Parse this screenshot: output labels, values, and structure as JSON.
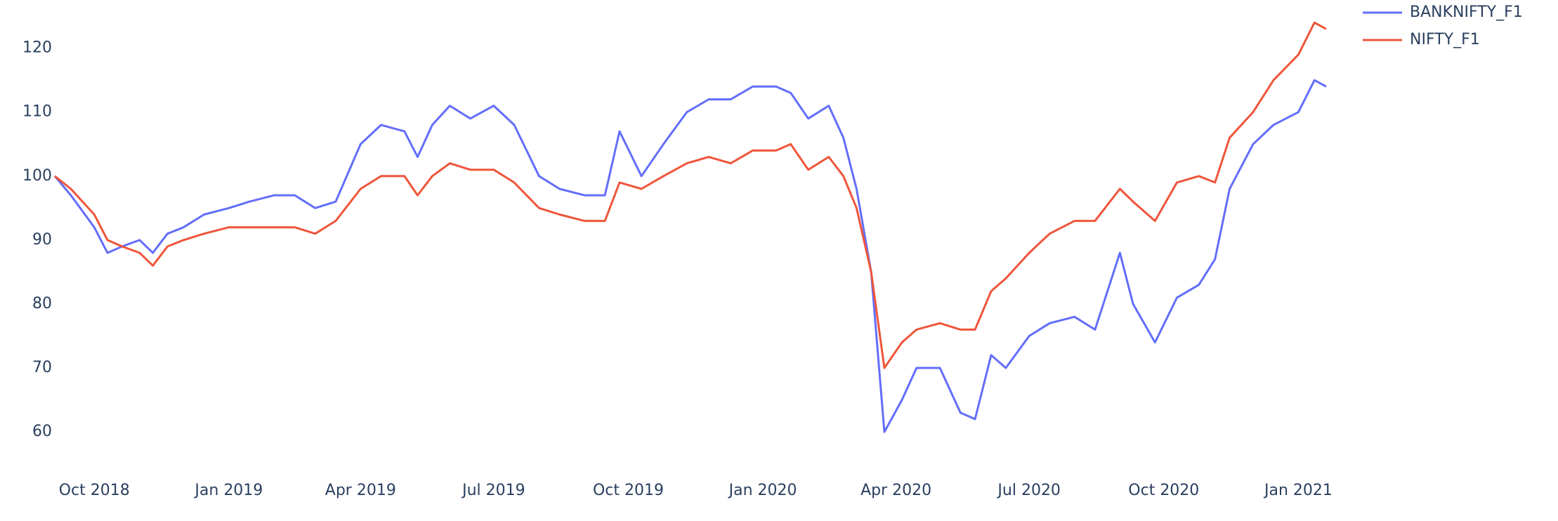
{
  "chart_data": {
    "type": "line",
    "x": [
      "2018-09-04",
      "2018-09-15",
      "2018-10-01",
      "2018-10-10",
      "2018-10-20",
      "2018-11-01",
      "2018-11-10",
      "2018-11-20",
      "2018-12-01",
      "2018-12-15",
      "2019-01-01",
      "2019-01-15",
      "2019-02-01",
      "2019-02-15",
      "2019-03-01",
      "2019-03-15",
      "2019-04-01",
      "2019-04-15",
      "2019-05-01",
      "2019-05-10",
      "2019-05-20",
      "2019-06-01",
      "2019-06-15",
      "2019-07-01",
      "2019-07-15",
      "2019-08-01",
      "2019-08-15",
      "2019-09-01",
      "2019-09-15",
      "2019-09-25",
      "2019-10-10",
      "2019-10-25",
      "2019-11-10",
      "2019-11-25",
      "2019-12-10",
      "2019-12-25",
      "2020-01-10",
      "2020-01-20",
      "2020-02-01",
      "2020-02-15",
      "2020-02-25",
      "2020-03-05",
      "2020-03-15",
      "2020-03-24",
      "2020-04-05",
      "2020-04-15",
      "2020-05-01",
      "2020-05-15",
      "2020-05-25",
      "2020-06-05",
      "2020-06-15",
      "2020-07-01",
      "2020-07-15",
      "2020-08-01",
      "2020-08-15",
      "2020-09-01",
      "2020-09-10",
      "2020-09-25",
      "2020-10-10",
      "2020-10-25",
      "2020-11-05",
      "2020-11-15",
      "2020-12-01",
      "2020-12-15",
      "2021-01-01",
      "2021-01-12",
      "2021-01-20"
    ],
    "series": [
      {
        "name": "BANKNIFTY_F1",
        "color": "#636efa",
        "values": [
          100,
          97,
          92,
          88,
          89,
          90,
          88,
          91,
          92,
          94,
          95,
          96,
          97,
          97,
          95,
          96,
          105,
          108,
          107,
          103,
          108,
          111,
          109,
          111,
          108,
          100,
          98,
          97,
          97,
          107,
          100,
          105,
          110,
          112,
          112,
          114,
          114,
          113,
          109,
          111,
          106,
          98,
          85,
          60,
          65,
          70,
          70,
          63,
          62,
          72,
          70,
          75,
          77,
          78,
          76,
          88,
          80,
          74,
          81,
          83,
          87,
          98,
          105,
          108,
          110,
          115,
          114
        ]
      },
      {
        "name": "NIFTY_F1",
        "color": "#ef553b",
        "values": [
          100,
          98,
          94,
          90,
          89,
          88,
          86,
          89,
          90,
          91,
          92,
          92,
          92,
          92,
          91,
          93,
          98,
          100,
          100,
          97,
          100,
          102,
          101,
          101,
          99,
          95,
          94,
          93,
          93,
          99,
          98,
          100,
          102,
          103,
          102,
          104,
          104,
          105,
          101,
          103,
          100,
          95,
          85,
          70,
          74,
          76,
          77,
          76,
          76,
          82,
          84,
          88,
          91,
          93,
          93,
          98,
          96,
          93,
          99,
          100,
          99,
          106,
          110,
          115,
          119,
          124,
          123
        ]
      }
    ],
    "xlim": [
      "2018-09-04",
      "2021-01-20"
    ],
    "xticks": [
      {
        "value": "2018-10-01",
        "label": "Oct 2018"
      },
      {
        "value": "2019-01-01",
        "label": "Jan 2019"
      },
      {
        "value": "2019-04-01",
        "label": "Apr 2019"
      },
      {
        "value": "2019-07-01",
        "label": "Jul 2019"
      },
      {
        "value": "2019-10-01",
        "label": "Oct 2019"
      },
      {
        "value": "2020-01-01",
        "label": "Jan 2020"
      },
      {
        "value": "2020-04-01",
        "label": "Apr 2020"
      },
      {
        "value": "2020-07-01",
        "label": "Jul 2020"
      },
      {
        "value": "2020-10-01",
        "label": "Oct 2020"
      },
      {
        "value": "2021-01-01",
        "label": "Jan 2021"
      }
    ],
    "ylim": [
      56.5,
      126
    ],
    "yticks": [
      60,
      70,
      80,
      90,
      100,
      110,
      120
    ],
    "grid": false,
    "legend": "top-right"
  }
}
